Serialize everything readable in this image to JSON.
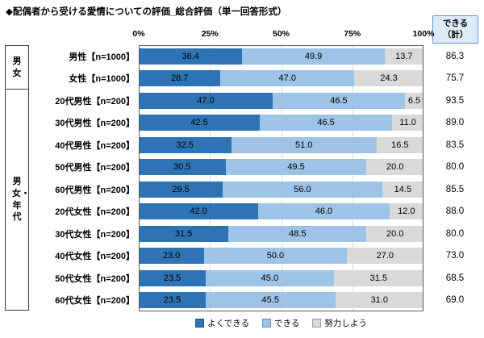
{
  "title": "◆配偶者から受ける愛情についての評価_総合評価（単一回答形式）",
  "axis_ticks": [
    "0%",
    "25%",
    "50%",
    "75%",
    "100%"
  ],
  "total_header_line1": "できる",
  "total_header_line2": "（計）",
  "legend": [
    "よくできる",
    "できる",
    "努力しよう"
  ],
  "groups": [
    {
      "label": "男女",
      "rows": 2
    },
    {
      "label": "男女・年代",
      "rows": 10
    }
  ],
  "colors": {
    "series": [
      "#2E74B5",
      "#9DC3E6",
      "#D9D9D9"
    ],
    "header_bg": "#DEEBF7",
    "header_border": "#5B9BD5",
    "plot_border": "#595959",
    "gridline": "#DCDCDC"
  },
  "chart_data": {
    "type": "bar",
    "orientation": "horizontal",
    "stacked": true,
    "x_range": [
      0,
      100
    ],
    "series_labels": [
      "よくできる",
      "できる",
      "努力しよう"
    ],
    "rows": [
      {
        "group": "男女",
        "label": "男性【n=1000】",
        "values": [
          36.4,
          49.9,
          13.7
        ],
        "total": 86.3
      },
      {
        "group": "男女",
        "label": "女性【n=1000】",
        "values": [
          28.7,
          47.0,
          24.3
        ],
        "total": 75.7
      },
      {
        "group": "男女・年代",
        "label": "20代男性【n=200】",
        "values": [
          47.0,
          46.5,
          6.5
        ],
        "total": 93.5
      },
      {
        "group": "男女・年代",
        "label": "30代男性【n=200】",
        "values": [
          42.5,
          46.5,
          11.0
        ],
        "total": 89.0
      },
      {
        "group": "男女・年代",
        "label": "40代男性【n=200】",
        "values": [
          32.5,
          51.0,
          16.5
        ],
        "total": 83.5
      },
      {
        "group": "男女・年代",
        "label": "50代男性【n=200】",
        "values": [
          30.5,
          49.5,
          20.0
        ],
        "total": 80.0
      },
      {
        "group": "男女・年代",
        "label": "60代男性【n=200】",
        "values": [
          29.5,
          56.0,
          14.5
        ],
        "total": 85.5
      },
      {
        "group": "男女・年代",
        "label": "20代女性【n=200】",
        "values": [
          42.0,
          46.0,
          12.0
        ],
        "total": 88.0
      },
      {
        "group": "男女・年代",
        "label": "30代女性【n=200】",
        "values": [
          31.5,
          48.5,
          20.0
        ],
        "total": 80.0
      },
      {
        "group": "男女・年代",
        "label": "40代女性【n=200】",
        "values": [
          23.0,
          50.0,
          27.0
        ],
        "total": 73.0
      },
      {
        "group": "男女・年代",
        "label": "50代女性【n=200】",
        "values": [
          23.5,
          45.0,
          31.5
        ],
        "total": 68.5
      },
      {
        "group": "男女・年代",
        "label": "60代女性【n=200】",
        "values": [
          23.5,
          45.5,
          31.0
        ],
        "total": 69.0
      }
    ]
  }
}
